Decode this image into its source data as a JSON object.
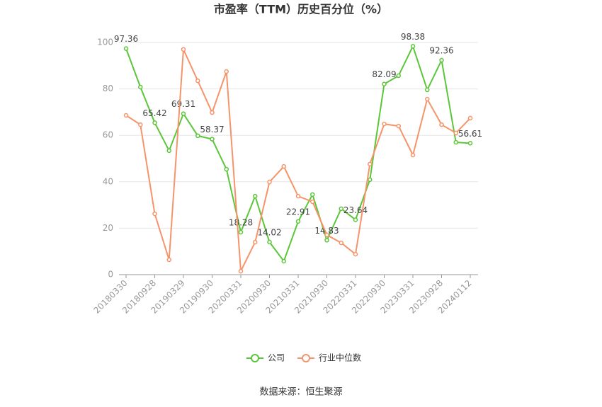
{
  "chart_data": {
    "type": "line",
    "title": "市盈率（TTM）历史百分位（%）",
    "source": "数据来源：恒生聚源",
    "categories": [
      "20180330",
      null,
      "20180928",
      null,
      "20190329",
      null,
      "20190930",
      null,
      "20200331",
      null,
      "20200930",
      null,
      "20210331",
      null,
      "20210930",
      null,
      "20220331",
      null,
      "20220930",
      null,
      "20230331",
      null,
      "20230928",
      null,
      "20240112"
    ],
    "series": [
      {
        "name": "公司",
        "color": "#5cc63a",
        "values": [
          97.36,
          80.8,
          65.42,
          53.4,
          69.31,
          59.8,
          58.37,
          45.4,
          18.28,
          33.8,
          14.02,
          5.8,
          22.91,
          34.5,
          14.83,
          28.4,
          23.64,
          40.9,
          82.09,
          85.7,
          98.38,
          79.6,
          92.36,
          57.0,
          56.61
        ],
        "value_labels": [
          "97.36",
          null,
          "65.42",
          null,
          "69.31",
          null,
          "58.37",
          null,
          "18.28",
          null,
          "14.02",
          null,
          "22.91",
          null,
          "14.83",
          null,
          "23.64",
          null,
          "82.09",
          null,
          "98.38",
          null,
          "92.36",
          null,
          "56.61"
        ]
      },
      {
        "name": "行业中位数",
        "color": "#f5946b",
        "values": [
          68.6,
          64.6,
          26.2,
          6.4,
          97.0,
          83.5,
          69.8,
          87.5,
          1.5,
          14.0,
          39.9,
          46.6,
          33.8,
          31.4,
          17.1,
          13.7,
          8.8,
          47.6,
          64.9,
          64.0,
          51.5,
          75.6,
          64.6,
          61.0,
          67.4
        ]
      }
    ],
    "ylim": [
      0,
      100
    ],
    "yticks": [
      0,
      20,
      40,
      60,
      80,
      100
    ],
    "grid": true,
    "legend": "bottom"
  }
}
